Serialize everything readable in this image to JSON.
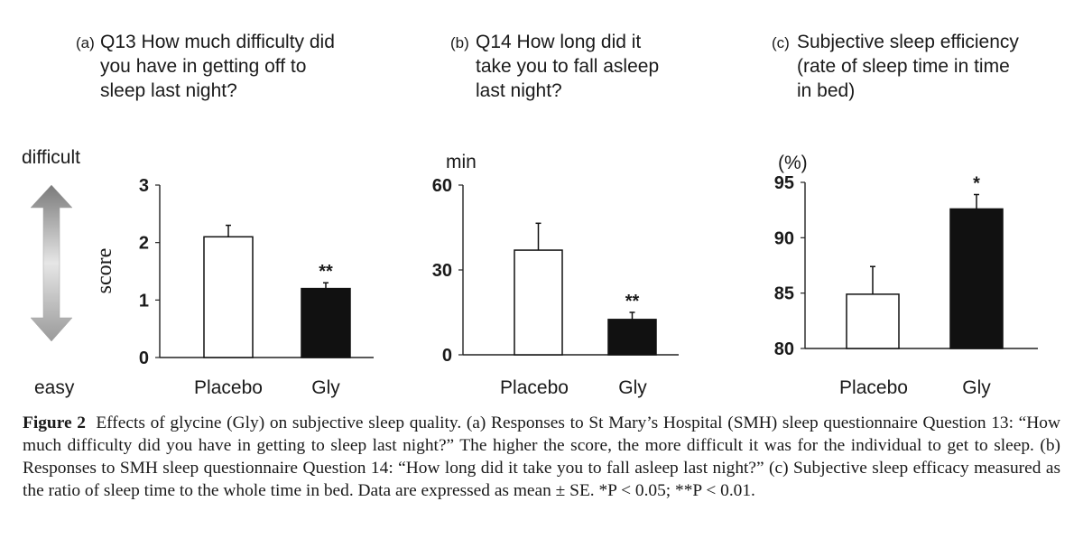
{
  "chart_data": [
    {
      "type": "bar",
      "panel_label": "(a)",
      "title_lines": [
        "Q13 How much difficulty did",
        "you have in getting off to",
        "sleep last night?"
      ],
      "ylabel": "score",
      "categories": [
        "Placebo",
        "Gly"
      ],
      "values": [
        2.1,
        1.2
      ],
      "errors": [
        0.2,
        0.1
      ],
      "fills": [
        "#ffffff",
        "#111111"
      ],
      "annotations": [
        "",
        "**"
      ],
      "ylim": [
        0,
        3
      ],
      "yticks": [
        "0",
        "1",
        "2",
        "3"
      ],
      "scale_top_label": "difficult",
      "scale_bottom_label": "easy"
    },
    {
      "type": "bar",
      "panel_label": "(b)",
      "title_lines": [
        "Q14 How long did it",
        "take you to fall asleep",
        "last night?"
      ],
      "ylabel": "min",
      "categories": [
        "Placebo",
        "Gly"
      ],
      "values": [
        37,
        12.5
      ],
      "errors": [
        9.5,
        2.5
      ],
      "fills": [
        "#ffffff",
        "#111111"
      ],
      "annotations": [
        "",
        "**"
      ],
      "ylim": [
        0,
        60
      ],
      "yticks": [
        "0",
        "30",
        "60"
      ]
    },
    {
      "type": "bar",
      "panel_label": "(c)",
      "title_lines": [
        "Subjective sleep efficiency",
        "(rate of sleep time in time",
        "in bed)"
      ],
      "ylabel": "(%)",
      "categories": [
        "Placebo",
        "Gly"
      ],
      "values": [
        84.9,
        92.6
      ],
      "errors": [
        2.5,
        1.3
      ],
      "fills": [
        "#ffffff",
        "#111111"
      ],
      "annotations": [
        "",
        "*"
      ],
      "ylim": [
        80,
        95
      ],
      "yticks": [
        "80",
        "85",
        "90",
        "95"
      ]
    }
  ],
  "caption": {
    "label": "Figure 2",
    "text": "Effects of glycine (Gly) on subjective sleep quality.  (a) Responses to St Mary’s Hospital (SMH) sleep questionnaire Question 13: “How much difficulty did you have in getting to sleep last night?” The higher the score, the more difficult it was for the individual to get to sleep. (b) Responses to SMH sleep questionnaire Question 14: “How long did it take you to fall asleep last night?” (c) Subjective sleep efficacy measured as the ratio of sleep time to the whole time in bed. Data are expressed as mean ± SE. *P < 0.05; **P < 0.01."
  }
}
